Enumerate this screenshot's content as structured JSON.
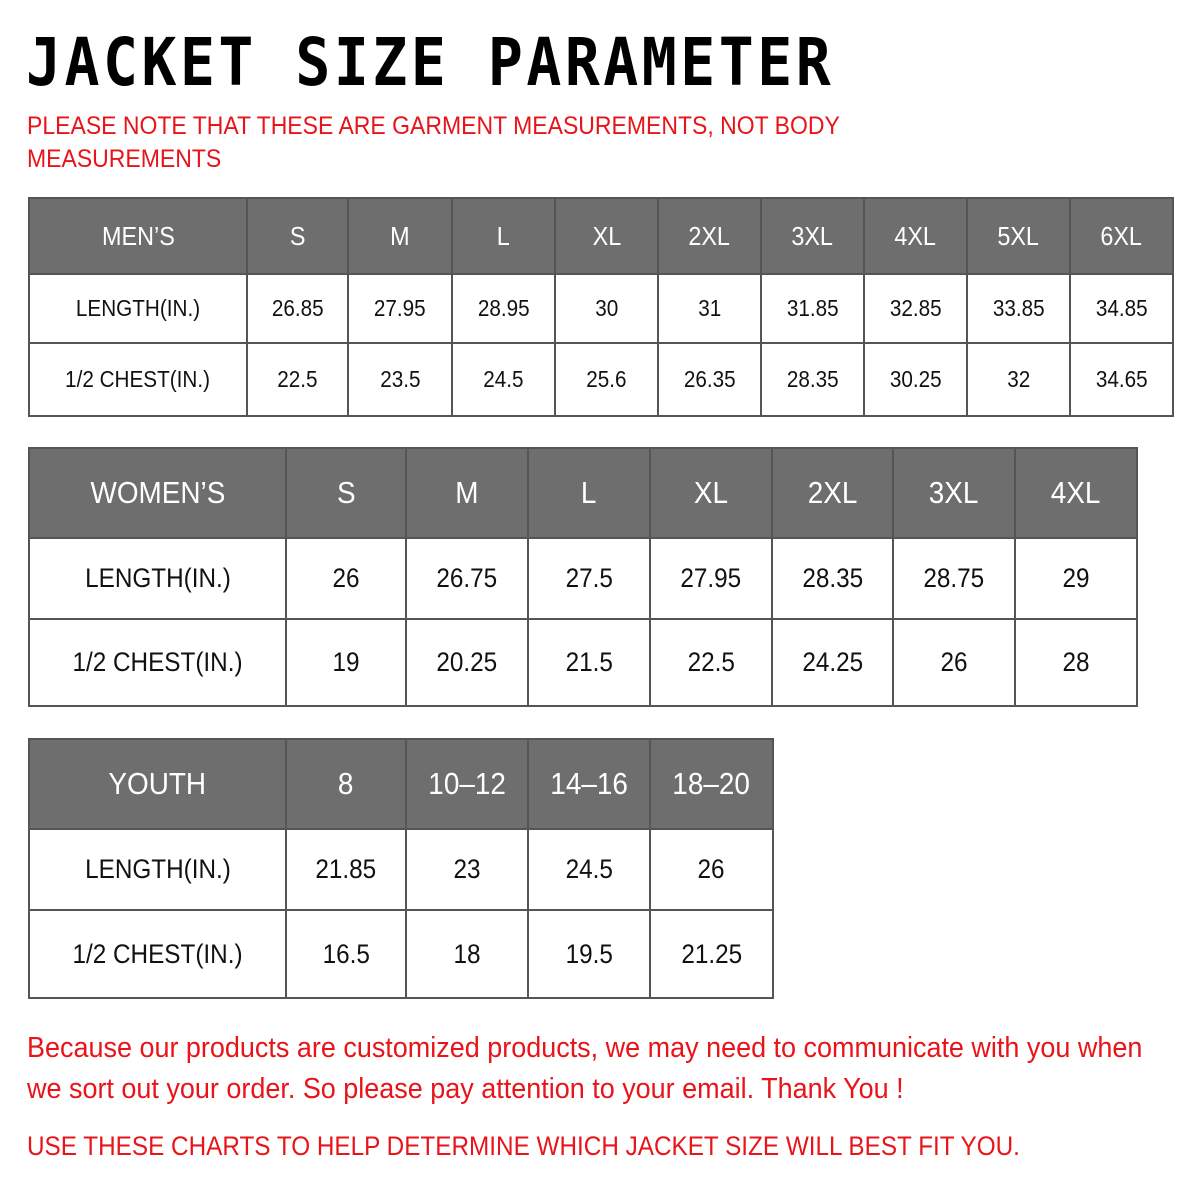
{
  "title": "JACKET SIZE PARAMETER",
  "note": "PLEASE NOTE THAT THESE ARE GARMENT MEASUREMENTS, NOT BODY MEASUREMENTS",
  "colors": {
    "header_bg": "#6e6e6e",
    "accent_red": "#e8141a"
  },
  "tables": {
    "men": {
      "header": [
        "MEN’S",
        "S",
        "M",
        "L",
        "XL",
        "2XL",
        "3XL",
        "4XL",
        "5XL",
        "6XL"
      ],
      "rows": [
        [
          "LENGTH(IN.)",
          "26.85",
          "27.95",
          "28.95",
          "30",
          "31",
          "31.85",
          "32.85",
          "33.85",
          "34.85"
        ],
        [
          "1/2 CHEST(IN.)",
          "22.5",
          "23.5",
          "24.5",
          "25.6",
          "26.35",
          "28.35",
          "30.25",
          "32",
          "34.65"
        ]
      ]
    },
    "women": {
      "header": [
        "WOMEN’S",
        "S",
        "M",
        "L",
        "XL",
        "2XL",
        "3XL",
        "4XL"
      ],
      "rows": [
        [
          "LENGTH(IN.)",
          "26",
          "26.75",
          "27.5",
          "27.95",
          "28.35",
          "28.75",
          "29"
        ],
        [
          "1/2 CHEST(IN.)",
          "19",
          "20.25",
          "21.5",
          "22.5",
          "24.25",
          "26",
          "28"
        ]
      ]
    },
    "youth": {
      "header": [
        "YOUTH",
        "8",
        "10–12",
        "14–16",
        "18–20"
      ],
      "rows": [
        [
          "LENGTH(IN.)",
          "21.85",
          "23",
          "24.5",
          "26"
        ],
        [
          "1/2 CHEST(IN.)",
          "16.5",
          "18",
          "19.5",
          "21.25"
        ]
      ]
    }
  },
  "footer": {
    "message": "Because our products are customized products, we may need to communicate with you when we sort out your order. So please pay attention to your email. Thank You !",
    "advice": "USE THESE CHARTS TO HELP DETERMINE WHICH JACKET SIZE WILL BEST FIT YOU."
  }
}
